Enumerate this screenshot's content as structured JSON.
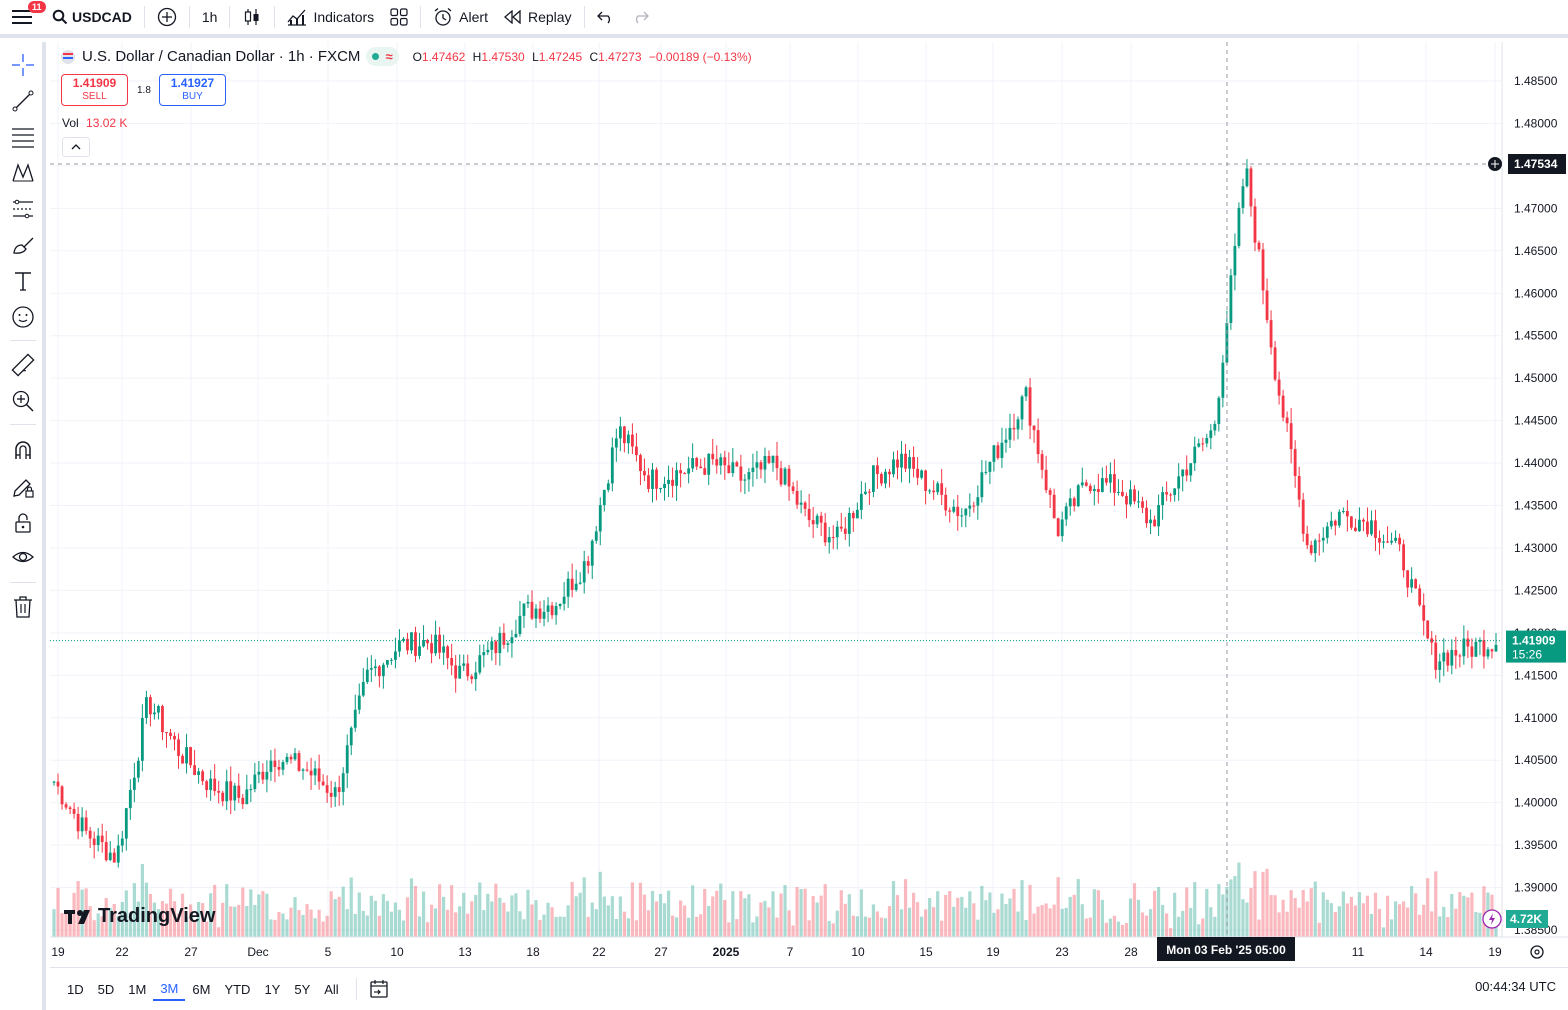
{
  "topbar": {
    "notification_count": "11",
    "symbol": "USDCAD",
    "interval": "1h",
    "indicators_label": "Indicators",
    "alert_label": "Alert",
    "replay_label": "Replay"
  },
  "legend": {
    "title": "U.S. Dollar / Canadian Dollar · 1h · FXCM",
    "open_label": "O",
    "open": "1.47462",
    "high_label": "H",
    "high": "1.47530",
    "low_label": "L",
    "low": "1.47245",
    "close_label": "C",
    "close": "1.47273",
    "change": "−0.00189 (−0.13%)"
  },
  "trade": {
    "sell_price": "1.41909",
    "sell_label": "SELL",
    "spread": "1.8",
    "buy_price": "1.41927",
    "buy_label": "BUY"
  },
  "volume": {
    "label": "Vol",
    "value": "13.02 K"
  },
  "price_axis": {
    "ticks": [
      "1.48500",
      "1.48000",
      "1.47500",
      "1.47000",
      "1.46500",
      "1.46000",
      "1.45500",
      "1.45000",
      "1.44500",
      "1.44000",
      "1.43500",
      "1.43000",
      "1.42500",
      "1.42000",
      "1.41500",
      "1.41000",
      "1.40500",
      "1.40000",
      "1.39500",
      "1.39000",
      "1.38500"
    ],
    "crosshair_price": "1.47534",
    "last_price": "1.41909",
    "countdown": "15:26",
    "volume_tag": "4.72K"
  },
  "time_axis": {
    "ticks": [
      "19",
      "22",
      "27",
      "Dec",
      "5",
      "10",
      "13",
      "18",
      "22",
      "27",
      "2025",
      "7",
      "10",
      "15",
      "19",
      "23",
      "28",
      "",
      "11",
      "14",
      "19"
    ],
    "crosshair_time": "Mon 03 Feb '25   05:00"
  },
  "bottombar": {
    "ranges": [
      "1D",
      "5D",
      "1M",
      "3M",
      "6M",
      "YTD",
      "1Y",
      "5Y",
      "All"
    ],
    "active_range": "3M",
    "clock": "00:44:34 UTC"
  },
  "branding": {
    "logo_text": "TradingView"
  },
  "chart_data": {
    "type": "candlestick",
    "symbol": "USDCAD",
    "interval": "1h",
    "ylim": [
      1.385,
      1.485
    ],
    "series": [
      {
        "name": "close",
        "points": [
          [
            "19",
            1.4025
          ],
          [
            "22",
            1.3965
          ],
          [
            "25",
            1.3935
          ],
          [
            "26",
            1.412
          ],
          [
            "27",
            1.406
          ],
          [
            "29",
            1.402
          ],
          [
            "Dec",
            1.4005
          ],
          [
            "3",
            1.4055
          ],
          [
            "5",
            1.404
          ],
          [
            "6",
            1.401
          ],
          [
            "9",
            1.415
          ],
          [
            "10",
            1.4185
          ],
          [
            "11",
            1.419
          ],
          [
            "12",
            1.415
          ],
          [
            "13",
            1.418
          ],
          [
            "16",
            1.4225
          ],
          [
            "17",
            1.4235
          ],
          [
            "18",
            1.4285
          ],
          [
            "19",
            1.444
          ],
          [
            "20",
            1.438
          ],
          [
            "22",
            1.439
          ],
          [
            "27",
            1.44
          ],
          [
            "31",
            1.438
          ],
          [
            "2025",
            1.44
          ],
          [
            "6",
            1.4335
          ],
          [
            "7",
            1.431
          ],
          [
            "8",
            1.438
          ],
          [
            "10",
            1.4405
          ],
          [
            "14",
            1.437
          ],
          [
            "15",
            1.434
          ],
          [
            "16",
            1.441
          ],
          [
            "17",
            1.448
          ],
          [
            "20",
            1.432
          ],
          [
            "21",
            1.438
          ],
          [
            "23",
            1.437
          ],
          [
            "24",
            1.433
          ],
          [
            "28",
            1.439
          ],
          [
            "31",
            1.444
          ],
          [
            "Feb 3",
            1.475
          ],
          [
            "4",
            1.45
          ],
          [
            "5",
            1.43
          ],
          [
            "7",
            1.434
          ],
          [
            "11",
            1.433
          ],
          [
            "12",
            1.429
          ],
          [
            "14",
            1.417
          ],
          [
            "17",
            1.418
          ],
          [
            "19",
            1.4191
          ]
        ]
      }
    ]
  }
}
